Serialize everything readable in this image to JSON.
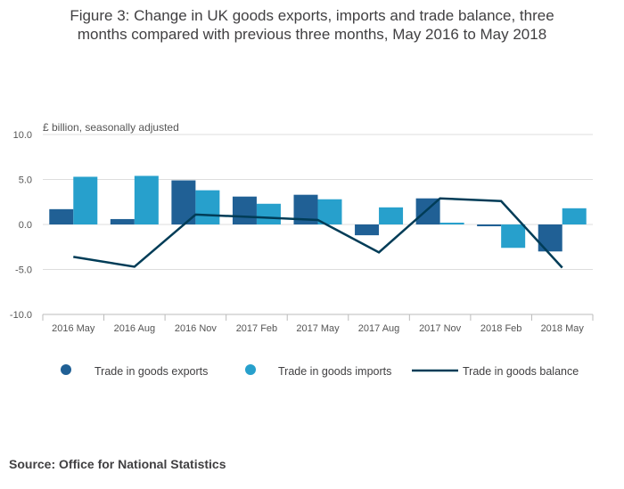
{
  "title": {
    "line1": "Figure 3: Change in UK goods exports, imports and trade balance, three",
    "line2": "months compared with previous three months, May 2016 to May 2018"
  },
  "chart_data": {
    "type": "bar",
    "title": "Figure 3: Change in UK goods exports, imports and trade balance, three months compared with previous three months, May 2016 to May 2018",
    "ylabel": "£ billion, seasonally adjusted",
    "xlabel": "",
    "ylim": [
      -10,
      10
    ],
    "yticks": [
      "10.0",
      "5.0",
      "0.0",
      "-5.0",
      "-10.0"
    ],
    "ytick_values": [
      10,
      5,
      0,
      -5,
      -10
    ],
    "grid": true,
    "categories": [
      "2016 May",
      "2016 Aug",
      "2016 Nov",
      "2017 Feb",
      "2017 May",
      "2017 Aug",
      "2017 Nov",
      "2018 Feb",
      "2018 May"
    ],
    "series": [
      {
        "name": "Trade in goods exports",
        "kind": "bar",
        "color": "#206095",
        "values": [
          1.7,
          0.6,
          4.9,
          3.1,
          3.3,
          -1.2,
          2.9,
          -0.2,
          -3.0
        ]
      },
      {
        "name": "Trade in goods imports",
        "kind": "bar",
        "color": "#27a0cc",
        "values": [
          5.3,
          5.4,
          3.8,
          2.3,
          2.8,
          1.9,
          0.2,
          -2.6,
          1.8
        ]
      },
      {
        "name": "Trade in goods balance",
        "kind": "line",
        "color": "#003c57",
        "values": [
          -3.6,
          -4.7,
          1.1,
          0.8,
          0.5,
          -3.1,
          2.9,
          2.6,
          -4.8
        ]
      }
    ],
    "legend_position": "bottom"
  },
  "source": "Source: Office for National Statistics"
}
